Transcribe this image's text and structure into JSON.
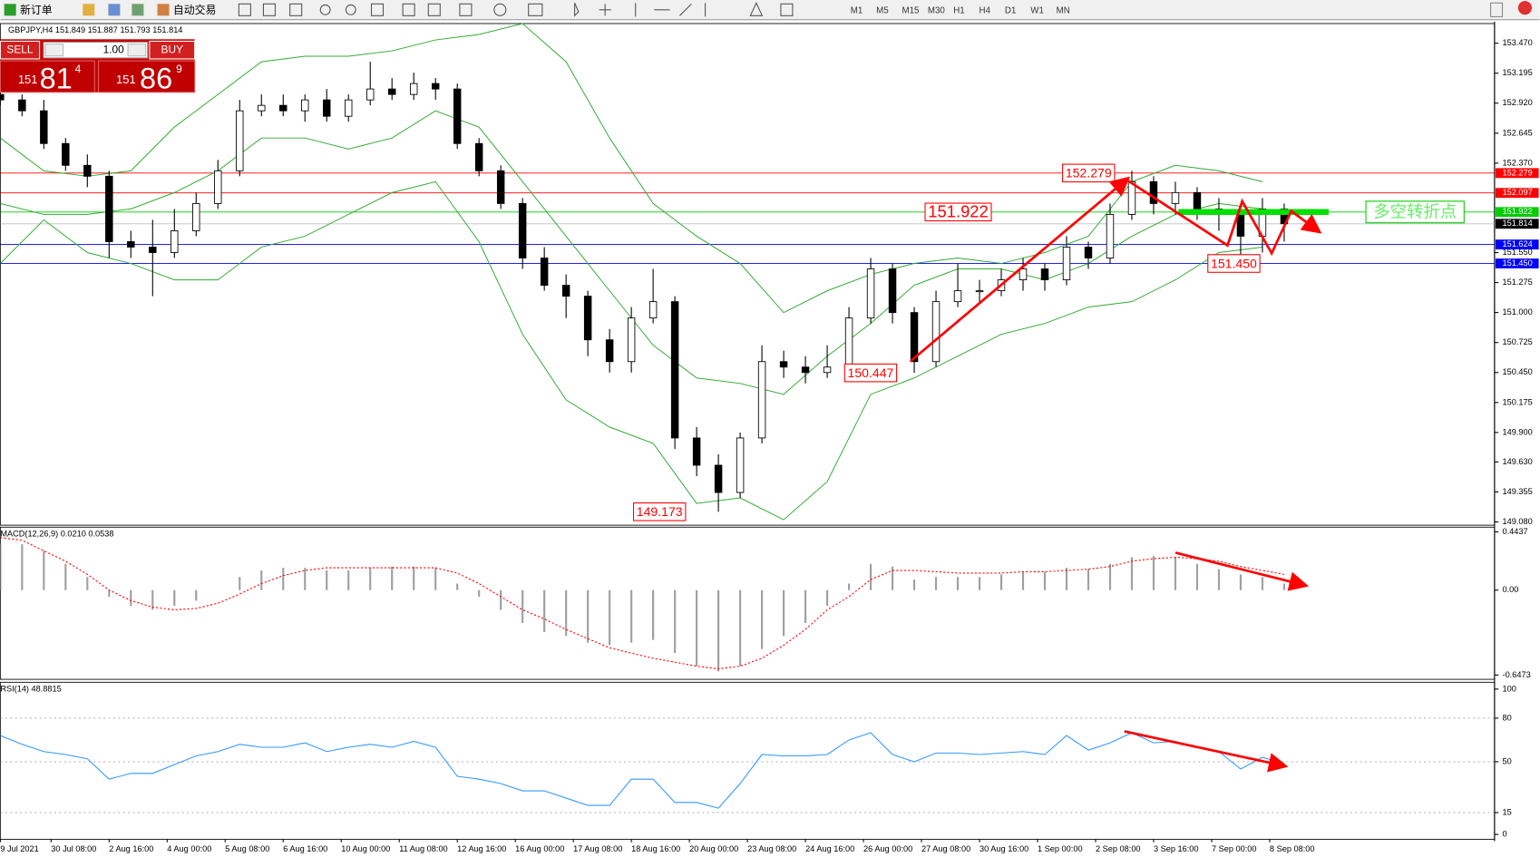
{
  "toolbar": {
    "new_order": "新订单",
    "auto_trading": "自动交易",
    "timeframes": [
      "M1",
      "M5",
      "M15",
      "M30",
      "H1",
      "H4",
      "D1",
      "W1",
      "MN"
    ]
  },
  "trade_panel": {
    "sell": "SELL",
    "buy": "BUY",
    "lots": "1.00",
    "sell_price": {
      "big": "151",
      "pips": "81",
      "point": "4"
    },
    "buy_price": {
      "big": "151",
      "pips": "86",
      "point": "9"
    }
  },
  "chart_data": [
    {
      "type": "candlestick",
      "title": "GBPJPY,H4 151.849 151.887 151.793 151.814",
      "x": [
        1,
        4,
        7,
        10,
        13,
        16,
        19,
        22,
        25,
        28,
        31,
        34,
        37,
        40,
        43,
        46,
        49,
        52,
        55,
        58,
        61,
        64,
        67,
        70,
        73,
        76,
        79,
        82,
        85,
        88,
        91,
        94,
        97,
        100,
        103,
        106,
        109,
        112,
        115,
        118,
        121,
        124,
        127,
        130,
        133,
        136,
        139,
        142,
        145,
        148,
        151,
        154,
        157,
        160,
        163,
        166,
        169,
        172,
        175,
        178
      ],
      "open": [
        153.0,
        152.95,
        152.85,
        152.55,
        152.35,
        152.25,
        151.65,
        151.6,
        151.55,
        151.75,
        152.0,
        152.3,
        152.85,
        152.9,
        152.85,
        152.95,
        152.8,
        152.95,
        153.05,
        153.0,
        153.1,
        153.05,
        152.55,
        152.3,
        152.0,
        151.5,
        151.25,
        151.15,
        150.75,
        150.55,
        150.95,
        151.1,
        149.85,
        149.6,
        149.35,
        149.85,
        150.55,
        150.5,
        150.45,
        150.5,
        150.95,
        151.4,
        151.0,
        150.55,
        151.1,
        151.2,
        151.2,
        151.3,
        151.4,
        151.3,
        151.6,
        151.5,
        151.9,
        152.2,
        152.0,
        152.1,
        151.95,
        151.9,
        151.7,
        151.95
      ],
      "high": [
        153.05,
        153.0,
        152.95,
        152.6,
        152.45,
        152.3,
        151.75,
        151.85,
        151.95,
        152.1,
        152.4,
        152.95,
        153.0,
        153.0,
        153.0,
        153.05,
        153.0,
        153.3,
        153.15,
        153.2,
        153.15,
        153.1,
        152.6,
        152.35,
        152.05,
        151.6,
        151.35,
        151.2,
        150.85,
        151.05,
        151.4,
        151.15,
        149.95,
        149.7,
        149.9,
        150.7,
        150.65,
        150.6,
        150.7,
        151.05,
        151.5,
        151.45,
        151.05,
        151.2,
        151.45,
        151.3,
        151.4,
        151.5,
        151.45,
        151.7,
        151.65,
        152.0,
        152.3,
        152.25,
        152.2,
        152.15,
        152.05,
        151.95,
        152.05,
        152.0
      ],
      "low": [
        152.9,
        152.8,
        152.5,
        152.3,
        152.15,
        151.5,
        151.5,
        151.15,
        151.5,
        151.7,
        151.95,
        152.25,
        152.8,
        152.8,
        152.75,
        152.75,
        152.75,
        152.9,
        152.95,
        152.95,
        152.95,
        152.5,
        152.25,
        151.95,
        151.4,
        151.2,
        150.95,
        150.6,
        150.45,
        150.45,
        150.9,
        149.75,
        149.5,
        149.173,
        149.3,
        149.8,
        150.4,
        150.35,
        150.4,
        150.45,
        150.9,
        150.9,
        150.447,
        150.5,
        151.05,
        151.1,
        151.15,
        151.2,
        151.2,
        151.25,
        151.4,
        151.45,
        151.85,
        151.9,
        151.9,
        151.85,
        151.75,
        151.45,
        151.55,
        151.65
      ],
      "close": [
        152.95,
        152.85,
        152.55,
        152.35,
        152.25,
        151.65,
        151.6,
        151.55,
        151.75,
        152.0,
        152.3,
        152.85,
        152.9,
        152.85,
        152.95,
        152.8,
        152.95,
        153.05,
        153.0,
        153.1,
        153.05,
        152.55,
        152.3,
        152.0,
        151.5,
        151.25,
        151.15,
        150.75,
        150.55,
        150.95,
        151.1,
        149.85,
        149.6,
        149.35,
        149.85,
        150.55,
        150.5,
        150.45,
        150.5,
        150.95,
        151.4,
        151.0,
        150.55,
        151.1,
        151.2,
        151.2,
        151.3,
        151.4,
        151.3,
        151.6,
        151.5,
        151.9,
        152.2,
        152.0,
        152.1,
        151.95,
        151.9,
        151.7,
        151.95,
        151.814
      ],
      "bands": {
        "color": "#33aa33",
        "x": [
          1,
          7,
          13,
          19,
          25,
          31,
          37,
          43,
          49,
          55,
          61,
          67,
          73,
          79,
          85,
          91,
          97,
          103,
          109,
          115,
          121,
          127,
          133,
          139,
          145,
          151,
          157,
          163,
          169,
          175
        ],
        "upper": [
          152.6,
          152.3,
          152.25,
          152.3,
          152.7,
          153.0,
          153.3,
          153.35,
          153.35,
          153.4,
          153.5,
          153.55,
          153.65,
          153.3,
          152.6,
          152.0,
          151.7,
          151.45,
          151.0,
          151.2,
          151.35,
          151.45,
          151.5,
          151.45,
          151.55,
          151.7,
          152.2,
          152.35,
          152.3,
          152.2
        ],
        "middle": [
          152.0,
          151.9,
          151.9,
          151.95,
          152.1,
          152.3,
          152.6,
          152.6,
          152.5,
          152.6,
          152.85,
          152.7,
          152.2,
          151.7,
          151.2,
          150.7,
          150.4,
          150.35,
          150.25,
          150.6,
          150.9,
          151.25,
          151.4,
          151.4,
          151.3,
          151.45,
          151.7,
          151.9,
          152.0,
          151.95
        ],
        "lower": [
          151.45,
          151.85,
          151.55,
          151.45,
          151.3,
          151.3,
          151.6,
          151.7,
          151.9,
          152.1,
          152.2,
          151.65,
          150.8,
          150.2,
          149.95,
          149.8,
          149.25,
          149.3,
          149.1,
          149.45,
          150.25,
          150.4,
          150.6,
          150.8,
          150.9,
          151.05,
          151.1,
          151.3,
          151.55,
          151.6
        ]
      },
      "xlim": [
        1,
        207
      ],
      "ylim": [
        149.05,
        153.65
      ],
      "yticks": [
        {
          "value": 153.47,
          "label": "153.470"
        },
        153.195,
        {
          "value": 152.92,
          "label": "152.920"
        },
        152.645,
        {
          "value": 152.37,
          "label": "152.370"
        },
        {
          "value": 151.55,
          "label": "151.550"
        },
        151.275,
        {
          "value": 151.0,
          "label": "151.000"
        },
        150.725,
        {
          "value": 150.45,
          "label": "150.450"
        },
        150.175,
        {
          "value": 149.9,
          "label": "149.900"
        },
        {
          "value": 149.63,
          "label": "149.630"
        },
        149.355,
        {
          "value": 149.08,
          "label": "149.080"
        }
      ],
      "price_lines": [
        {
          "value": 152.279,
          "color": "#ff0000"
        },
        {
          "value": 152.097,
          "color": "#ff0000"
        },
        {
          "value": 151.922,
          "color": "#00cc00"
        },
        {
          "value": 151.814,
          "color": "#000000"
        },
        {
          "value": 151.624,
          "color": "#0000ff"
        },
        {
          "value": 151.45,
          "label": "151.450",
          "color": "#0000ff"
        }
      ],
      "annotations": [
        {
          "value": 152.279
        },
        {
          "value": 151.922
        },
        {
          "value": 150.447
        },
        {
          "value": 149.173
        },
        {
          "value": 151.45,
          "label": "151.450"
        }
      ],
      "note": "多空转折点"
    },
    {
      "type": "macd",
      "title": "MACD(12,26,9) 0.0210 0.0538",
      "x": [
        1,
        4,
        7,
        10,
        13,
        16,
        19,
        22,
        25,
        28,
        31,
        34,
        37,
        40,
        43,
        46,
        49,
        52,
        55,
        58,
        61,
        64,
        67,
        70,
        73,
        76,
        79,
        82,
        85,
        88,
        91,
        94,
        97,
        100,
        103,
        106,
        109,
        112,
        115,
        118,
        121,
        124,
        127,
        130,
        133,
        136,
        139,
        142,
        145,
        148,
        151,
        154,
        157,
        160,
        163,
        166,
        169,
        172,
        175,
        178
      ],
      "histogram": [
        0.35,
        0.35,
        0.3,
        0.2,
        0.1,
        -0.05,
        -0.12,
        -0.15,
        -0.12,
        -0.08,
        0.0,
        0.1,
        0.15,
        0.17,
        0.17,
        0.15,
        0.15,
        0.17,
        0.18,
        0.18,
        0.17,
        0.05,
        -0.05,
        -0.15,
        -0.25,
        -0.32,
        -0.35,
        -0.4,
        -0.42,
        -0.4,
        -0.38,
        -0.48,
        -0.58,
        -0.62,
        -0.58,
        -0.45,
        -0.35,
        -0.25,
        -0.12,
        0.05,
        0.2,
        0.18,
        0.08,
        0.1,
        0.1,
        0.1,
        0.12,
        0.14,
        0.14,
        0.17,
        0.16,
        0.2,
        0.25,
        0.26,
        0.25,
        0.2,
        0.16,
        0.12,
        0.1,
        0.05
      ],
      "signal": [
        0.4,
        0.38,
        0.3,
        0.22,
        0.12,
        0.0,
        -0.08,
        -0.13,
        -0.15,
        -0.14,
        -0.1,
        -0.03,
        0.05,
        0.11,
        0.15,
        0.17,
        0.17,
        0.17,
        0.17,
        0.17,
        0.17,
        0.13,
        0.05,
        -0.05,
        -0.15,
        -0.22,
        -0.3,
        -0.37,
        -0.44,
        -0.48,
        -0.52,
        -0.55,
        -0.58,
        -0.6,
        -0.58,
        -0.52,
        -0.42,
        -0.3,
        -0.15,
        -0.05,
        0.08,
        0.15,
        0.15,
        0.14,
        0.13,
        0.13,
        0.13,
        0.14,
        0.14,
        0.15,
        0.16,
        0.18,
        0.22,
        0.24,
        0.25,
        0.24,
        0.22,
        0.18,
        0.15,
        0.12
      ],
      "histogram_color": "#a0a0a0",
      "signal_color": "#ff0000",
      "xlim": [
        1,
        207
      ],
      "ylim": [
        -0.68,
        0.48
      ],
      "yticks": [
        0.4437,
        {
          "value": 0,
          "label": "0.00"
        },
        -0.6473
      ]
    },
    {
      "type": "line",
      "title": "RSI(14) 48.8815",
      "x": [
        1,
        4,
        7,
        10,
        13,
        16,
        19,
        22,
        25,
        28,
        31,
        34,
        37,
        40,
        43,
        46,
        49,
        52,
        55,
        58,
        61,
        64,
        67,
        70,
        73,
        76,
        79,
        82,
        85,
        88,
        91,
        94,
        97,
        100,
        103,
        106,
        109,
        112,
        115,
        118,
        121,
        124,
        127,
        130,
        133,
        136,
        139,
        142,
        145,
        148,
        151,
        154,
        157,
        160,
        163,
        166,
        169,
        172,
        175,
        178
      ],
      "values": [
        68,
        62,
        57,
        55,
        52,
        38,
        42,
        42,
        48,
        54,
        57,
        62,
        60,
        60,
        63,
        57,
        60,
        62,
        60,
        64,
        60,
        40,
        38,
        35,
        30,
        30,
        25,
        20,
        20,
        38,
        38,
        22,
        22,
        18,
        35,
        55,
        54,
        54,
        55,
        65,
        70,
        55,
        50,
        56,
        56,
        55,
        56,
        57,
        55,
        68,
        58,
        63,
        70,
        63,
        64,
        60,
        57,
        45,
        53,
        48.8815
      ],
      "color": "#3399ff",
      "levels": [
        80,
        50,
        15
      ],
      "xlim": [
        1,
        207
      ],
      "ylim": [
        -3.4,
        104.7
      ],
      "yticks": [
        100,
        80,
        50,
        15,
        0
      ],
      "xticks": [
        {
          "value": 1,
          "label": "9 Jul 2021"
        },
        {
          "value": 8,
          "label": "30 Jul 08:00"
        },
        {
          "value": 16,
          "label": "2 Aug 16:00"
        },
        {
          "value": 24,
          "label": "4 Aug 00:00"
        },
        {
          "value": 32,
          "label": "5 Aug 08:00"
        },
        {
          "value": 40,
          "label": "6 Aug 16:00"
        },
        {
          "value": 48,
          "label": "10 Aug 00:00"
        },
        {
          "value": 56,
          "label": "11 Aug 08:00"
        },
        {
          "value": 64,
          "label": "12 Aug 16:00"
        },
        {
          "value": 72,
          "label": "16 Aug 00:00"
        },
        {
          "value": 80,
          "label": "17 Aug 08:00"
        },
        {
          "value": 88,
          "label": "18 Aug 16:00"
        },
        {
          "value": 96,
          "label": "20 Aug 00:00"
        },
        {
          "value": 104,
          "label": "23 Aug 08:00"
        },
        {
          "value": 112,
          "label": "24 Aug 16:00"
        },
        {
          "value": 120,
          "label": "26 Aug 00:00"
        },
        {
          "value": 128,
          "label": "27 Aug 08:00"
        },
        {
          "value": 136,
          "label": "30 Aug 16:00"
        },
        {
          "value": 144,
          "label": "1 Sep 00:00"
        },
        {
          "value": 152,
          "label": "2 Sep 08:00"
        },
        {
          "value": 160,
          "label": "3 Sep 16:00"
        },
        {
          "value": 168,
          "label": "7 Sep 00:00"
        },
        {
          "value": 176,
          "label": "8 Sep 08:00"
        }
      ]
    }
  ]
}
